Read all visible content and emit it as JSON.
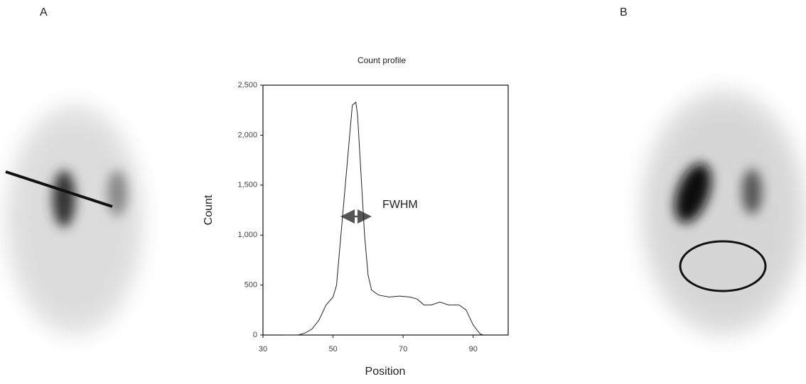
{
  "panel_labels": [
    "A",
    "B"
  ],
  "chart_data": {
    "type": "line",
    "title": "Count profile",
    "x_label": "Position",
    "y_label": "Count",
    "annotation": "FWHM",
    "x": [
      36,
      40,
      42,
      44,
      46,
      48,
      50,
      51,
      52,
      53.5,
      55,
      55.5,
      56.5,
      57,
      58,
      59,
      60,
      61,
      63,
      66,
      69,
      72,
      74,
      76,
      78,
      80.5,
      83,
      86,
      88,
      90,
      92,
      93
    ],
    "series": [
      {
        "name": "Count",
        "color": "#222222",
        "values": [
          0,
          0,
          20,
          60,
          150,
          300,
          380,
          500,
          900,
          1500,
          2100,
          2300,
          2330,
          2200,
          1600,
          1000,
          600,
          450,
          400,
          380,
          390,
          380,
          360,
          300,
          300,
          330,
          300,
          300,
          250,
          100,
          10,
          0
        ]
      }
    ],
    "xlim": [
      30,
      100
    ],
    "xticks": [
      30,
      50,
      70,
      90
    ],
    "ylim": [
      0,
      2500
    ],
    "yticks": [
      0,
      {
        "value": 500,
        "label": "500"
      },
      {
        "value": 1000,
        "label": "1,000"
      },
      {
        "value": 1500,
        "label": "1,500"
      },
      {
        "value": 2000,
        "label": "2,000"
      },
      {
        "value": 2500,
        "label": "2,500"
      }
    ]
  }
}
